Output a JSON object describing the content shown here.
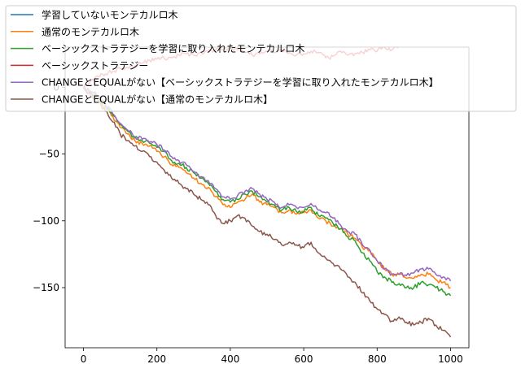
{
  "chart_data": {
    "type": "line",
    "title": "",
    "xlabel": "",
    "ylabel": "",
    "xlim": [
      -50,
      1050
    ],
    "ylim": [
      -195,
      30
    ],
    "xticks": [
      0,
      200,
      400,
      600,
      800,
      1000
    ],
    "xtick_labels": [
      "0",
      "200",
      "400",
      "600",
      "800",
      "1000"
    ],
    "yticks": [
      0,
      -50,
      -100,
      -150
    ],
    "ytick_labels": [
      "0",
      "−50",
      "−100",
      "−150"
    ],
    "legend_position": "top-left, extending beyond plot area",
    "series": [
      {
        "name": "学習していないモンテカルロ木",
        "color": "#1f77b4",
        "x": [
          0,
          5
        ],
        "y": [
          0,
          -1
        ]
      },
      {
        "name": "通常のモンテカルロ木",
        "color": "#ff7f0e",
        "x": [
          0,
          20,
          40,
          60,
          80,
          100,
          120,
          140,
          160,
          180,
          200,
          220,
          240,
          260,
          280,
          300,
          320,
          340,
          360,
          380,
          400,
          420,
          440,
          460,
          480,
          500,
          520,
          540,
          560,
          580,
          600,
          620,
          640,
          660,
          680,
          700,
          720,
          740,
          760,
          780,
          800,
          820,
          840,
          860,
          880,
          900,
          920,
          940,
          960,
          980,
          1000
        ],
        "y": [
          0,
          -5,
          -8,
          -15,
          -22,
          -30,
          -35,
          -40,
          -42,
          -44,
          -48,
          -52,
          -58,
          -60,
          -64,
          -68,
          -72,
          -75,
          -82,
          -88,
          -90,
          -86,
          -84,
          -80,
          -86,
          -88,
          -90,
          -94,
          -92,
          -95,
          -94,
          -92,
          -98,
          -100,
          -104,
          -106,
          -110,
          -113,
          -120,
          -122,
          -130,
          -136,
          -140,
          -140,
          -143,
          -143,
          -140,
          -140,
          -144,
          -146,
          -150
        ]
      },
      {
        "name": "ベーシックストラテジーを学習に取り入れたモンテカルロ木",
        "color": "#2ca02c",
        "x": [
          0,
          20,
          40,
          60,
          80,
          100,
          120,
          140,
          160,
          180,
          200,
          220,
          240,
          260,
          280,
          300,
          320,
          340,
          360,
          380,
          400,
          420,
          440,
          460,
          480,
          500,
          520,
          540,
          560,
          580,
          600,
          620,
          640,
          660,
          680,
          700,
          720,
          740,
          760,
          780,
          800,
          820,
          840,
          860,
          880,
          900,
          920,
          940,
          960,
          980,
          1000
        ],
        "y": [
          0,
          -4,
          -7,
          -14,
          -21,
          -28,
          -33,
          -38,
          -40,
          -42,
          -45,
          -48,
          -55,
          -57,
          -60,
          -64,
          -68,
          -72,
          -78,
          -84,
          -86,
          -84,
          -80,
          -78,
          -82,
          -86,
          -88,
          -92,
          -90,
          -93,
          -93,
          -90,
          -96,
          -98,
          -102,
          -106,
          -112,
          -115,
          -124,
          -130,
          -138,
          -142,
          -146,
          -147,
          -150,
          -150,
          -146,
          -148,
          -150,
          -153,
          -156
        ]
      },
      {
        "name": "ベーシックストラテジー",
        "color": "#d62728",
        "x": [
          0,
          20,
          40,
          60,
          80,
          100,
          120,
          140,
          160,
          180,
          200,
          220,
          240,
          260,
          280,
          300,
          320,
          340,
          360,
          380,
          400,
          420,
          440,
          460,
          480,
          500,
          520,
          540,
          560,
          580,
          600,
          620,
          640,
          660,
          680,
          700,
          720,
          740,
          760,
          780,
          800,
          820,
          840,
          860,
          880,
          900,
          920,
          940,
          960,
          980,
          1000
        ],
        "y": [
          0,
          5,
          8,
          10,
          12,
          14,
          15,
          16,
          18,
          20,
          21,
          22,
          22,
          24,
          25,
          24,
          26,
          27,
          28,
          28,
          29,
          28,
          26,
          24,
          25,
          27,
          26,
          28,
          26,
          24,
          25,
          27,
          26,
          22,
          23,
          27,
          24,
          25,
          26,
          28,
          27,
          30,
          28,
          32,
          35,
          34,
          36,
          35,
          38,
          42,
          45
        ]
      },
      {
        "name": "CHANGEとEQUALがない【ベーシックストラテジーを学習に取り入れたモンテカルロ木】",
        "color": "#9467bd",
        "x": [
          0,
          20,
          40,
          60,
          80,
          100,
          120,
          140,
          160,
          180,
          200,
          220,
          240,
          260,
          280,
          300,
          320,
          340,
          360,
          380,
          400,
          420,
          440,
          460,
          480,
          500,
          520,
          540,
          560,
          580,
          600,
          620,
          640,
          660,
          680,
          700,
          720,
          740,
          760,
          780,
          800,
          820,
          840,
          860,
          880,
          900,
          920,
          940,
          960,
          980,
          1000
        ],
        "y": [
          0,
          -3,
          -6,
          -13,
          -20,
          -27,
          -32,
          -37,
          -39,
          -41,
          -43,
          -47,
          -52,
          -55,
          -58,
          -63,
          -67,
          -70,
          -76,
          -82,
          -84,
          -81,
          -78,
          -76,
          -80,
          -84,
          -86,
          -90,
          -88,
          -90,
          -90,
          -87,
          -92,
          -94,
          -98,
          -103,
          -108,
          -110,
          -118,
          -122,
          -130,
          -136,
          -140,
          -140,
          -141,
          -139,
          -136,
          -136,
          -140,
          -142,
          -145
        ]
      },
      {
        "name": "CHANGEとEQUALがない【通常のモンテカルロ木】",
        "color": "#8c564b",
        "x": [
          0,
          20,
          40,
          60,
          80,
          100,
          120,
          140,
          160,
          180,
          200,
          220,
          240,
          260,
          280,
          300,
          320,
          340,
          360,
          380,
          400,
          420,
          440,
          460,
          480,
          500,
          520,
          540,
          560,
          580,
          600,
          620,
          640,
          660,
          680,
          700,
          720,
          740,
          760,
          780,
          800,
          820,
          840,
          860,
          880,
          900,
          920,
          940,
          960,
          980,
          1000
        ],
        "y": [
          0,
          -6,
          -10,
          -18,
          -26,
          -35,
          -40,
          -44,
          -48,
          -52,
          -56,
          -62,
          -68,
          -72,
          -76,
          -80,
          -84,
          -88,
          -96,
          -102,
          -100,
          -96,
          -98,
          -104,
          -108,
          -110,
          -114,
          -118,
          -116,
          -118,
          -120,
          -116,
          -124,
          -128,
          -132,
          -136,
          -142,
          -146,
          -154,
          -160,
          -166,
          -170,
          -175,
          -172,
          -176,
          -178,
          -176,
          -173,
          -178,
          -182,
          -187
        ]
      }
    ]
  }
}
